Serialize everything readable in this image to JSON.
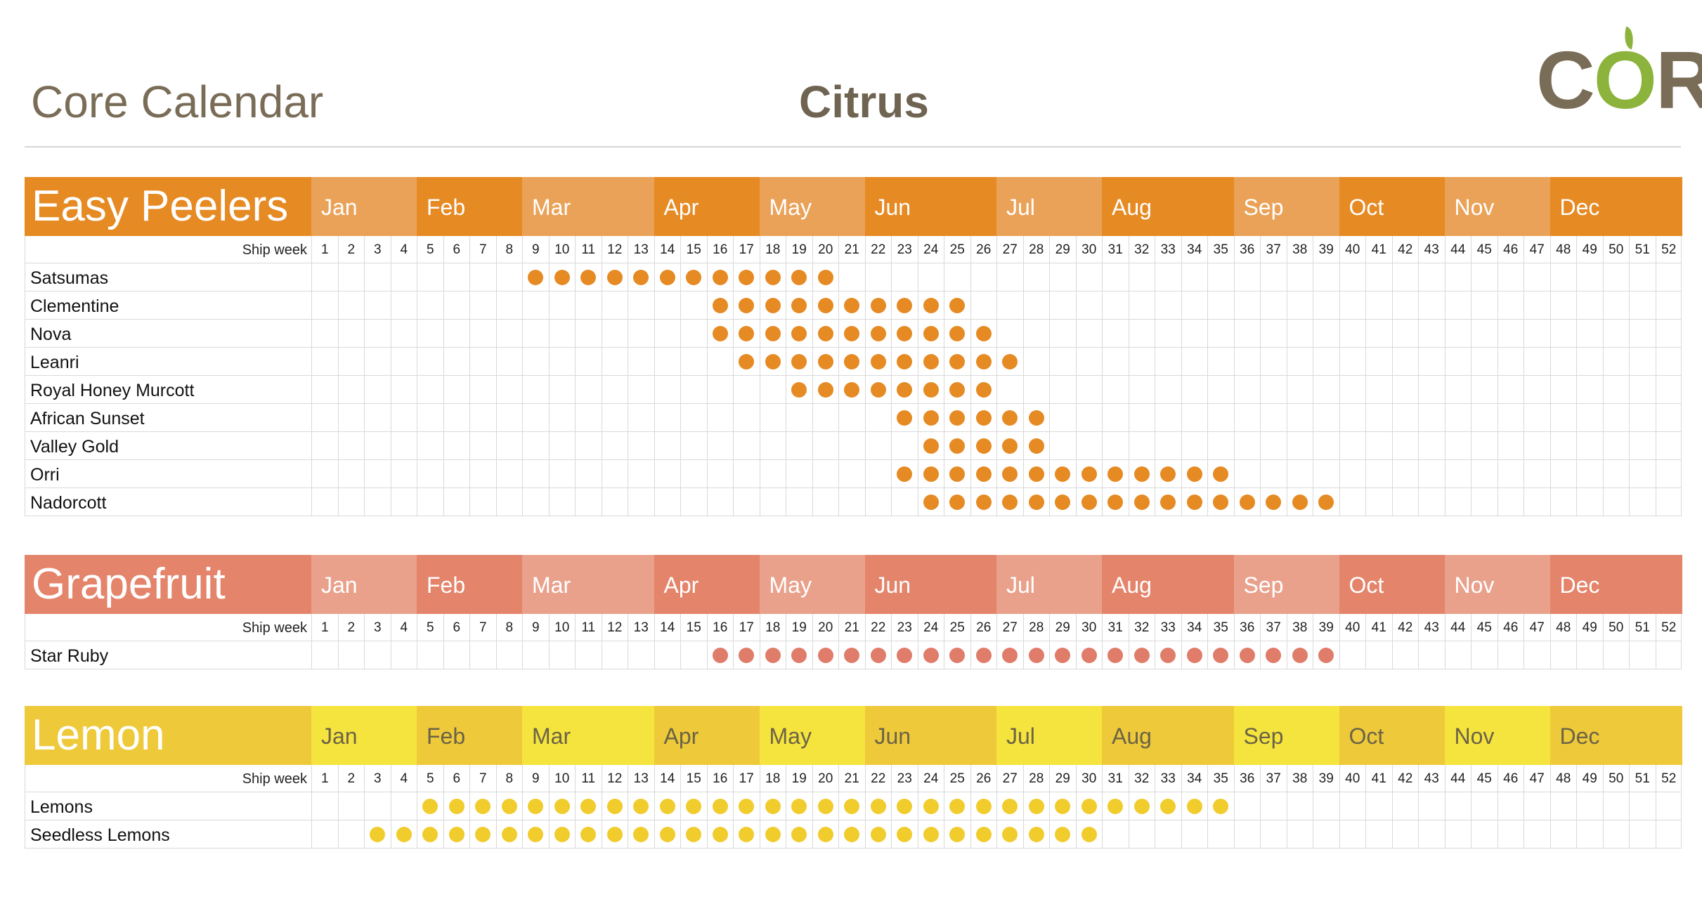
{
  "header": {
    "app_title": "Core Calendar",
    "page_title": "Citrus",
    "logo_text": "CORE"
  },
  "months": [
    "Jan",
    "Feb",
    "Mar",
    "Apr",
    "May",
    "Jun",
    "Jul",
    "Aug",
    "Sep",
    "Oct",
    "Nov",
    "Dec"
  ],
  "month_week_counts": [
    4,
    4,
    5,
    4,
    4,
    5,
    4,
    5,
    4,
    4,
    4,
    5
  ],
  "ship_week_label": "Ship week",
  "sections": [
    {
      "name": "Easy Peelers",
      "colors": {
        "title": "#e68a24",
        "month_dark": "#e68a24",
        "month_light": "#eaa258",
        "dot": "#e68a24"
      },
      "products": [
        {
          "name": "Satsumas",
          "weeks": [
            9,
            10,
            11,
            12,
            13,
            14,
            15,
            16,
            17,
            18,
            19,
            20
          ]
        },
        {
          "name": "Clementine",
          "weeks": [
            16,
            17,
            18,
            19,
            20,
            21,
            22,
            23,
            24,
            25
          ]
        },
        {
          "name": "Nova",
          "weeks": [
            16,
            17,
            18,
            19,
            20,
            21,
            22,
            23,
            24,
            25,
            26
          ]
        },
        {
          "name": "Leanri",
          "weeks": [
            17,
            18,
            19,
            20,
            21,
            22,
            23,
            24,
            25,
            26,
            27
          ]
        },
        {
          "name": "Royal Honey Murcott",
          "weeks": [
            19,
            20,
            21,
            22,
            23,
            24,
            25,
            26
          ]
        },
        {
          "name": "African Sunset",
          "weeks": [
            23,
            24,
            25,
            26,
            27,
            28
          ]
        },
        {
          "name": "Valley Gold",
          "weeks": [
            24,
            25,
            26,
            27,
            28
          ]
        },
        {
          "name": "Orri",
          "weeks": [
            23,
            24,
            25,
            26,
            27,
            28,
            29,
            30,
            31,
            32,
            33,
            34,
            35
          ]
        },
        {
          "name": "Nadorcott",
          "weeks": [
            24,
            25,
            26,
            27,
            28,
            29,
            30,
            31,
            32,
            33,
            34,
            35,
            36,
            37,
            38,
            39
          ]
        }
      ]
    },
    {
      "name": "Grapefruit",
      "colors": {
        "title": "#e4846b",
        "month_dark": "#e4846b",
        "month_light": "#e9a18c",
        "dot": "#e07c6a"
      },
      "products": [
        {
          "name": "Star Ruby",
          "weeks": [
            16,
            17,
            18,
            19,
            20,
            21,
            22,
            23,
            24,
            25,
            26,
            27,
            28,
            29,
            30,
            31,
            32,
            33,
            34,
            35,
            36,
            37,
            38,
            39
          ]
        }
      ]
    },
    {
      "name": "Lemon",
      "colors": {
        "title": "#eec93a",
        "month_dark": "#eec93a",
        "month_light": "#f6e43e",
        "dot": "#f1cc2d"
      },
      "products": [
        {
          "name": "Lemons",
          "weeks": [
            5,
            6,
            7,
            8,
            9,
            10,
            11,
            12,
            13,
            14,
            15,
            16,
            17,
            18,
            19,
            20,
            21,
            22,
            23,
            24,
            25,
            26,
            27,
            28,
            29,
            30,
            31,
            32,
            33,
            34,
            35
          ]
        },
        {
          "name": "Seedless Lemons",
          "weeks": [
            3,
            4,
            5,
            6,
            7,
            8,
            9,
            10,
            11,
            12,
            13,
            14,
            15,
            16,
            17,
            18,
            19,
            20,
            21,
            22,
            23,
            24,
            25,
            26,
            27,
            28,
            29,
            30
          ]
        }
      ]
    }
  ]
}
